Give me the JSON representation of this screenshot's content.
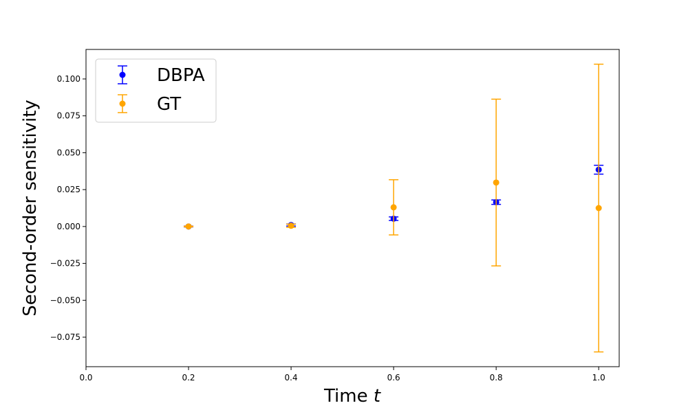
{
  "chart_data": {
    "type": "scatter",
    "xlabel": "Time",
    "xlabel_var": "t",
    "ylabel": "Second-order sensitivity",
    "xlim": [
      0.0,
      1.04
    ],
    "ylim": [
      -0.095,
      0.12
    ],
    "xticks": [
      0.0,
      0.2,
      0.4,
      0.6,
      0.8,
      1.0
    ],
    "xtick_labels": [
      "0.0",
      "0.2",
      "0.4",
      "0.6",
      "0.8",
      "1.0"
    ],
    "yticks": [
      -0.075,
      -0.05,
      -0.025,
      0.0,
      0.025,
      0.05,
      0.075,
      0.1
    ],
    "ytick_labels": [
      "−0.075",
      "−0.050",
      "−0.025",
      "0.000",
      "0.025",
      "0.050",
      "0.075",
      "0.100"
    ],
    "grid": false,
    "legend_position": "top-left",
    "series": [
      {
        "name": "DBPA",
        "color": "#0000ff",
        "x": [
          0.2,
          0.4,
          0.6,
          0.8,
          1.0
        ],
        "y": [
          0.0,
          0.001,
          0.0053,
          0.0165,
          0.0385
        ],
        "yerr": [
          0.0003,
          0.0007,
          0.0012,
          0.0015,
          0.003
        ]
      },
      {
        "name": "GT",
        "color": "#ffa500",
        "x": [
          0.2,
          0.4,
          0.6,
          0.8,
          1.0
        ],
        "y": [
          0.0,
          0.0005,
          0.013,
          0.0298,
          0.0125
        ],
        "yerr": [
          0.0002,
          0.0011,
          0.0187,
          0.0565,
          0.0975
        ]
      }
    ]
  }
}
